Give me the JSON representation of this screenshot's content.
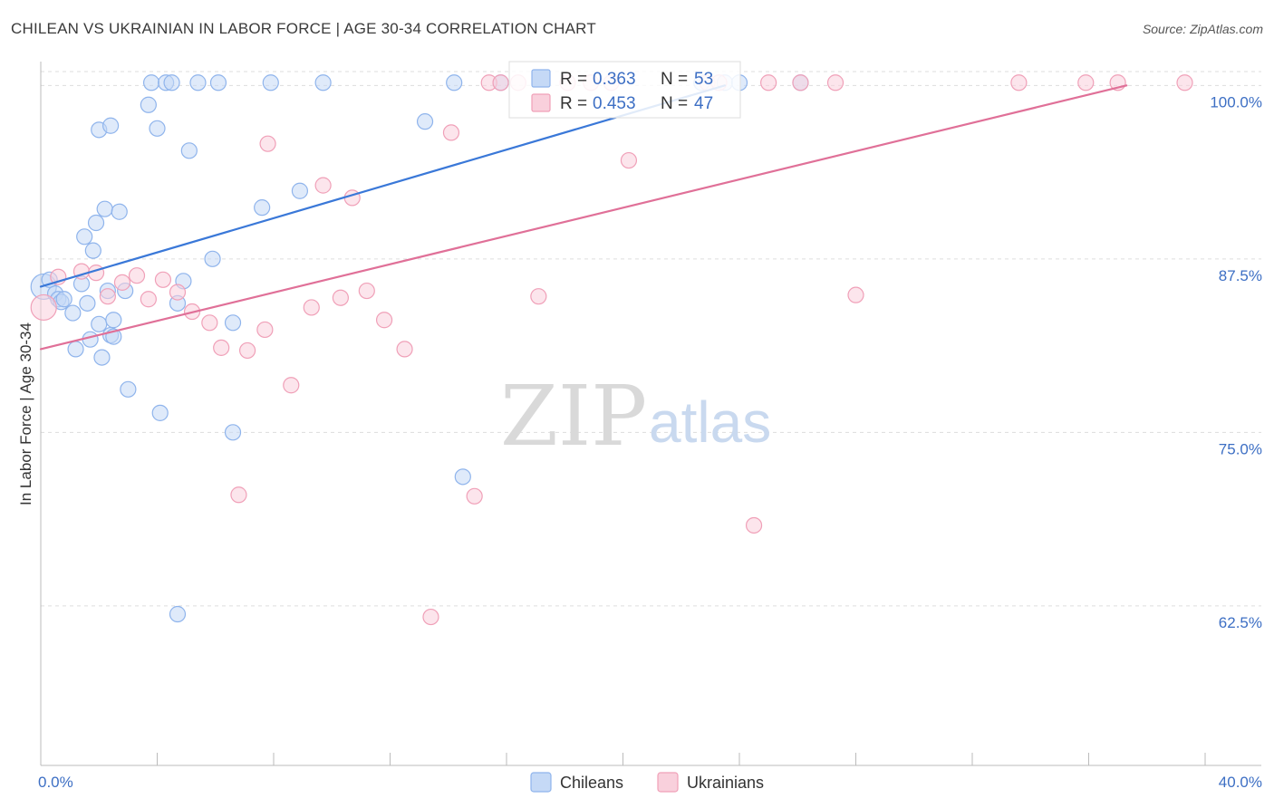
{
  "header": {
    "title": "CHILEAN VS UKRAINIAN IN LABOR FORCE | AGE 30-34 CORRELATION CHART",
    "source": "Source: ZipAtlas.com"
  },
  "watermark": {
    "zip": "ZIP",
    "atlas": "atlas"
  },
  "legend": {
    "r_label": "R = ",
    "n_label": "N = ",
    "rows": [
      {
        "r": "0.363",
        "n": "53",
        "color": "#8fb4ec",
        "fill": "#c5d9f6"
      },
      {
        "r": "0.453",
        "n": "47",
        "color": "#f0a0b8",
        "fill": "#f9d0dc"
      }
    ]
  },
  "bottom_legend": [
    {
      "label": "Chileans",
      "color": "#8fb4ec",
      "fill": "#c5d9f6"
    },
    {
      "label": "Ukrainians",
      "color": "#f0a0b8",
      "fill": "#f9d0dc"
    }
  ],
  "chart_data": {
    "type": "scatter",
    "title": "CHILEAN VS UKRAINIAN IN LABOR FORCE | AGE 30-34 CORRELATION CHART",
    "xlabel": "",
    "ylabel": "In Labor Force | Age 30-34",
    "xlim": [
      0,
      40
    ],
    "ylim": [
      51,
      101
    ],
    "x_tick_labels": [
      "0.0%",
      "40.0%"
    ],
    "y_ticks": [
      62.5,
      75.0,
      87.5,
      100.0
    ],
    "y_tick_labels": [
      "62.5%",
      "75.0%",
      "87.5%",
      "100.0%"
    ],
    "grid": true,
    "series": [
      {
        "name": "Chileans",
        "color": "#3a78d8",
        "point_stroke": "#8fb4ec",
        "point_fill": "#c5d9f6",
        "r": 0.363,
        "n": 53,
        "trend": {
          "x0": 0.0,
          "y0": 85.5,
          "x1": 23.5,
          "y1": 100.0
        },
        "points": [
          [
            0.1,
            85.5
          ],
          [
            0.3,
            86.0
          ],
          [
            0.5,
            85.0
          ],
          [
            0.6,
            84.6
          ],
          [
            0.7,
            84.4
          ],
          [
            0.8,
            84.6
          ],
          [
            1.1,
            83.6
          ],
          [
            1.2,
            81.0
          ],
          [
            1.4,
            85.7
          ],
          [
            1.5,
            89.1
          ],
          [
            1.6,
            84.3
          ],
          [
            1.7,
            81.7
          ],
          [
            1.8,
            88.1
          ],
          [
            1.9,
            90.1
          ],
          [
            2.0,
            82.8
          ],
          [
            2.0,
            96.8
          ],
          [
            2.1,
            80.4
          ],
          [
            2.2,
            91.1
          ],
          [
            2.3,
            85.2
          ],
          [
            2.4,
            97.1
          ],
          [
            2.4,
            82.0
          ],
          [
            2.5,
            83.1
          ],
          [
            2.5,
            81.9
          ],
          [
            2.7,
            90.9
          ],
          [
            2.9,
            85.2
          ],
          [
            3.0,
            78.1
          ],
          [
            3.7,
            98.6
          ],
          [
            3.8,
            100.2
          ],
          [
            4.0,
            96.9
          ],
          [
            4.1,
            76.4
          ],
          [
            4.3,
            100.2
          ],
          [
            4.5,
            100.2
          ],
          [
            4.7,
            84.3
          ],
          [
            4.7,
            61.9
          ],
          [
            4.9,
            85.9
          ],
          [
            5.1,
            95.3
          ],
          [
            5.4,
            100.2
          ],
          [
            5.9,
            87.5
          ],
          [
            6.1,
            100.2
          ],
          [
            6.6,
            82.9
          ],
          [
            6.6,
            75.0
          ],
          [
            7.6,
            91.2
          ],
          [
            7.9,
            100.2
          ],
          [
            8.9,
            92.4
          ],
          [
            9.7,
            100.2
          ],
          [
            13.2,
            97.4
          ],
          [
            14.2,
            100.2
          ],
          [
            14.5,
            71.8
          ],
          [
            15.8,
            100.2
          ],
          [
            22.7,
            100.2
          ],
          [
            23.5,
            100.2
          ],
          [
            24.0,
            100.2
          ],
          [
            26.1,
            100.2
          ]
        ]
      },
      {
        "name": "Ukrainians",
        "color": "#e07098",
        "point_stroke": "#f0a0b8",
        "point_fill": "#f9d0dc",
        "r": 0.453,
        "n": 47,
        "trend": {
          "x0": 0.0,
          "y0": 81.0,
          "x1": 37.3,
          "y1": 100.0
        },
        "points": [
          [
            0.1,
            84.0
          ],
          [
            0.6,
            86.2
          ],
          [
            1.4,
            86.6
          ],
          [
            1.9,
            86.5
          ],
          [
            2.3,
            84.8
          ],
          [
            2.8,
            85.8
          ],
          [
            3.3,
            86.3
          ],
          [
            3.7,
            84.6
          ],
          [
            4.2,
            86.0
          ],
          [
            4.7,
            85.1
          ],
          [
            5.2,
            83.7
          ],
          [
            5.8,
            82.9
          ],
          [
            6.2,
            81.1
          ],
          [
            6.8,
            70.5
          ],
          [
            7.1,
            80.9
          ],
          [
            7.7,
            82.4
          ],
          [
            7.8,
            95.8
          ],
          [
            8.6,
            78.4
          ],
          [
            9.3,
            84.0
          ],
          [
            9.7,
            92.8
          ],
          [
            10.3,
            84.7
          ],
          [
            10.7,
            91.9
          ],
          [
            11.2,
            85.2
          ],
          [
            11.8,
            83.1
          ],
          [
            12.5,
            81.0
          ],
          [
            13.4,
            61.7
          ],
          [
            14.1,
            96.6
          ],
          [
            14.9,
            70.4
          ],
          [
            15.4,
            100.2
          ],
          [
            15.8,
            100.2
          ],
          [
            16.4,
            100.2
          ],
          [
            17.1,
            84.8
          ],
          [
            18.1,
            100.2
          ],
          [
            18.9,
            100.2
          ],
          [
            19.6,
            100.2
          ],
          [
            20.2,
            94.6
          ],
          [
            22.9,
            100.2
          ],
          [
            23.3,
            100.2
          ],
          [
            24.5,
            68.3
          ],
          [
            25.0,
            100.2
          ],
          [
            26.1,
            100.2
          ],
          [
            27.3,
            100.2
          ],
          [
            28.0,
            84.9
          ],
          [
            33.6,
            100.2
          ],
          [
            35.9,
            100.2
          ],
          [
            37.0,
            100.2
          ],
          [
            39.3,
            100.2
          ]
        ]
      }
    ],
    "annotations": [
      {
        "type": "legend",
        "series": "Chileans",
        "text": "R = 0.363  N = 53"
      },
      {
        "type": "legend",
        "series": "Ukrainians",
        "text": "R = 0.453  N = 47"
      }
    ]
  }
}
